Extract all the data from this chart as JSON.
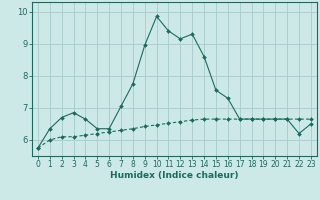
{
  "xlabel": "Humidex (Indice chaleur)",
  "bg_color": "#cce9e8",
  "grid_color": "#aacfce",
  "line_color": "#1a6b5e",
  "x_ticks": [
    0,
    1,
    2,
    3,
    4,
    5,
    6,
    7,
    8,
    9,
    10,
    11,
    12,
    13,
    14,
    15,
    16,
    17,
    18,
    19,
    20,
    21,
    22,
    23
  ],
  "y_ticks": [
    6,
    7,
    8,
    9,
    10
  ],
  "ylim": [
    5.5,
    10.3
  ],
  "xlim": [
    -0.5,
    23.5
  ],
  "series1_x": [
    0,
    1,
    2,
    3,
    4,
    5,
    6,
    7,
    8,
    9,
    10,
    11,
    12,
    13,
    14,
    15,
    16,
    17,
    18,
    19,
    20,
    21,
    22,
    23
  ],
  "series1_y": [
    5.75,
    6.35,
    6.7,
    6.85,
    6.65,
    6.35,
    6.35,
    7.05,
    7.75,
    8.95,
    9.85,
    9.4,
    9.15,
    9.3,
    8.6,
    7.55,
    7.3,
    6.65,
    6.65,
    6.65,
    6.65,
    6.65,
    6.2,
    6.5
  ],
  "series2_x": [
    0,
    1,
    2,
    3,
    4,
    5,
    6,
    7,
    8,
    9,
    10,
    11,
    12,
    13,
    14,
    15,
    16,
    17,
    18,
    19,
    20,
    21,
    22,
    23
  ],
  "series2_y": [
    5.75,
    6.0,
    6.1,
    6.1,
    6.15,
    6.2,
    6.25,
    6.3,
    6.35,
    6.42,
    6.47,
    6.52,
    6.57,
    6.62,
    6.65,
    6.65,
    6.65,
    6.65,
    6.65,
    6.65,
    6.65,
    6.65,
    6.65,
    6.65
  ],
  "tick_fontsize": 5.5,
  "xlabel_fontsize": 6.5
}
